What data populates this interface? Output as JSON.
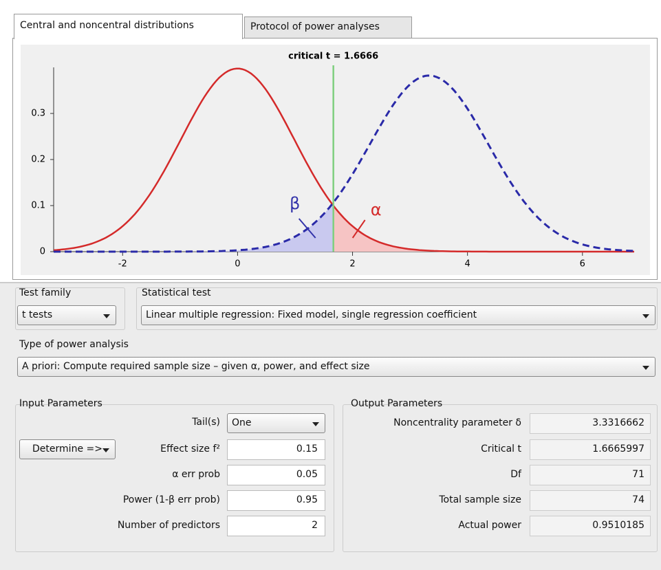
{
  "tabs": [
    "Central and noncentral distributions",
    "Protocol of power analyses"
  ],
  "chart_data": {
    "type": "distribution",
    "critical": {
      "value": 1.6666,
      "label": "critical t = 1.6666"
    },
    "beta_label": "β",
    "alpha_label": "α",
    "xlim": [
      -3.2,
      6.9
    ],
    "ylim": [
      0,
      0.4
    ],
    "xticks": [
      -2,
      0,
      2,
      4,
      6
    ],
    "yticks": [
      0,
      0.1,
      0.2,
      0.3
    ]
  },
  "test_family": {
    "label": "Test family",
    "value": "t tests"
  },
  "statistical_test": {
    "label": "Statistical test",
    "value": "Linear multiple regression: Fixed model, single regression coefficient"
  },
  "power_analysis_type": {
    "label": "Type of power analysis",
    "value": "A priori: Compute required sample size – given α, power, and effect size"
  },
  "input_parameters": {
    "title": "Input Parameters",
    "tails": {
      "label": "Tail(s)",
      "value": "One"
    },
    "determine_button": "Determine =>",
    "rows": [
      {
        "label": "Effect size f²",
        "value": 0.15
      },
      {
        "label": "α err prob",
        "value": 0.05
      },
      {
        "label": "Power (1-β err prob)",
        "value": 0.95
      },
      {
        "label": "Number of predictors",
        "value": 2
      }
    ]
  },
  "output_parameters": {
    "title": "Output Parameters",
    "rows": [
      {
        "label": "Noncentrality parameter δ",
        "value": 3.3316662
      },
      {
        "label": "Critical t",
        "value": 1.6665997
      },
      {
        "label": "Df",
        "value": 71
      },
      {
        "label": "Total sample size",
        "value": 74
      },
      {
        "label": "Actual power",
        "value": 0.9510185
      }
    ]
  }
}
